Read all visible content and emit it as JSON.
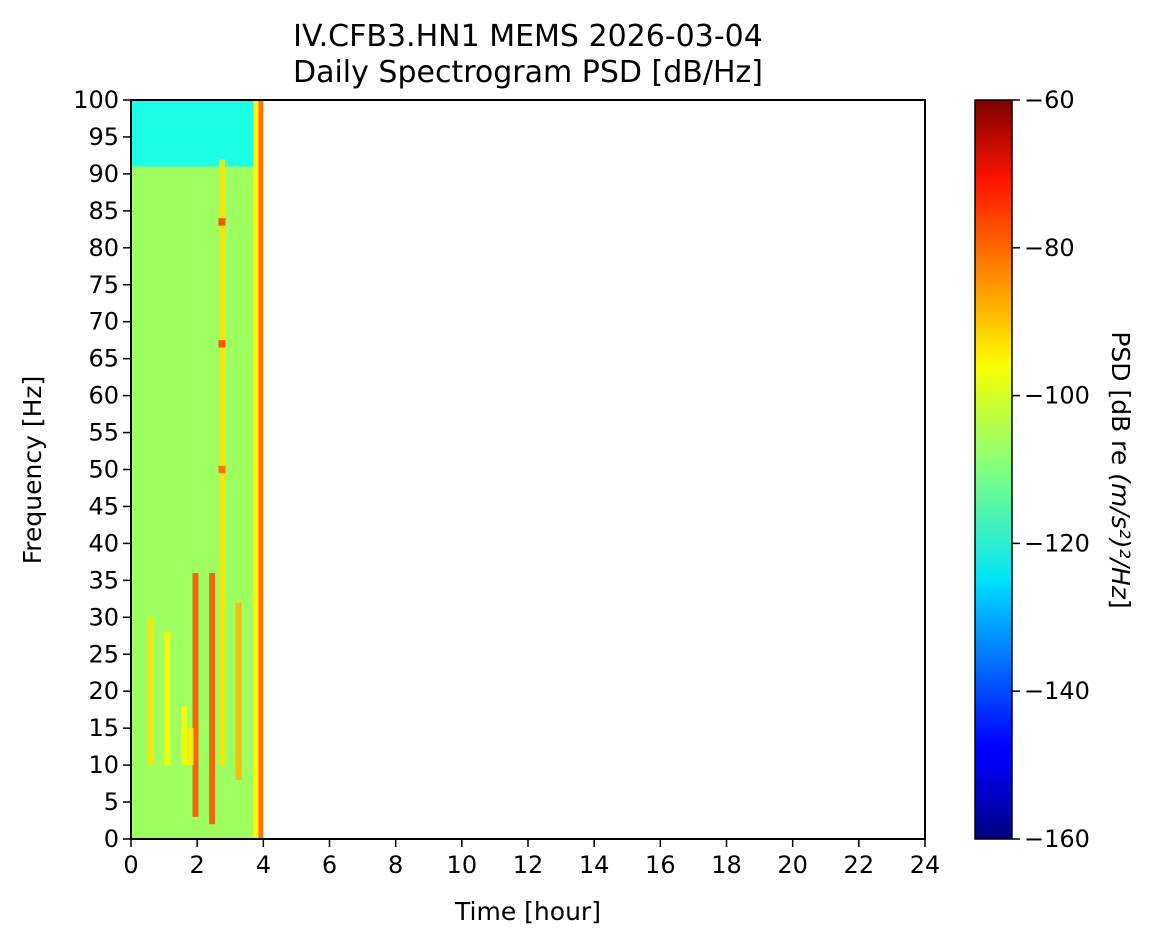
{
  "chart_data": {
    "type": "heatmap",
    "title_line1": "IV.CFB3.HN1 MEMS 2026-03-04",
    "title_line2": "Daily Spectrogram PSD [dB/Hz]",
    "xlabel": "Time [hour]",
    "ylabel": "Frequency [Hz]",
    "xlim": [
      0,
      24
    ],
    "ylim": [
      0,
      100
    ],
    "x_ticks": [
      "0",
      "2",
      "4",
      "6",
      "8",
      "10",
      "12",
      "14",
      "16",
      "18",
      "20",
      "22",
      "24"
    ],
    "y_ticks": [
      "0",
      "5",
      "10",
      "15",
      "20",
      "25",
      "30",
      "35",
      "40",
      "45",
      "50",
      "55",
      "60",
      "65",
      "70",
      "75",
      "80",
      "85",
      "90",
      "95",
      "100"
    ],
    "colormap": "jet",
    "colorbar": {
      "label_prefix": "PSD [dB re ",
      "label_math": "(m/s²)²/Hz",
      "label_suffix": "]",
      "range": [
        -160,
        -60
      ],
      "ticks": [
        "−60",
        "−80",
        "−100",
        "−120",
        "−140",
        "−160"
      ]
    },
    "data_extent_hours": [
      0,
      4
    ],
    "psd_regions": [
      {
        "t": [
          0,
          3.7
        ],
        "f": [
          91,
          100
        ],
        "psd": -120
      },
      {
        "t": [
          0,
          3.7
        ],
        "f": [
          0,
          91
        ],
        "psd": -107
      },
      {
        "t": [
          3.7,
          3.85
        ],
        "f": [
          0,
          100
        ],
        "psd": -97
      },
      {
        "t": [
          3.85,
          4.0
        ],
        "f": [
          0,
          100
        ],
        "psd": -84
      }
    ],
    "hotspots": [
      {
        "t": 1.95,
        "f": [
          3,
          36
        ],
        "psd": -80
      },
      {
        "t": 2.45,
        "f": [
          2,
          36
        ],
        "psd": -80
      },
      {
        "t": 2.75,
        "f": [
          10,
          92
        ],
        "psd": -95
      },
      {
        "t": 0.6,
        "f": [
          10,
          30
        ],
        "psd": -95
      },
      {
        "t": 1.1,
        "f": [
          10,
          28
        ],
        "psd": -97
      },
      {
        "t": 1.6,
        "f": [
          10,
          18
        ],
        "psd": -97
      },
      {
        "t": 3.25,
        "f": [
          8,
          32
        ],
        "psd": -90
      },
      {
        "t": 2.75,
        "f": [
          83,
          84
        ],
        "psd": -78
      },
      {
        "t": 2.75,
        "f": [
          66.5,
          67.5
        ],
        "psd": -78
      },
      {
        "t": 2.75,
        "f": [
          49.5,
          50.5
        ],
        "psd": -82
      },
      {
        "t": 1.8,
        "f": [
          10,
          15
        ],
        "psd": -96
      }
    ]
  }
}
